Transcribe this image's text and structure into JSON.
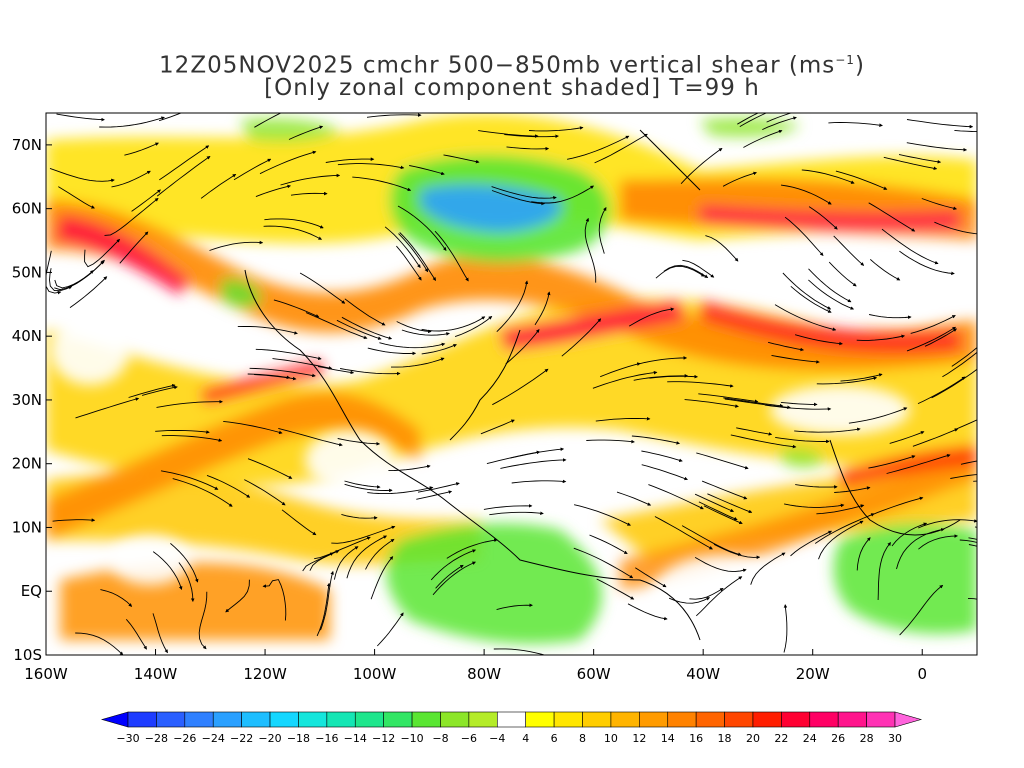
{
  "title": {
    "line1_prefix": "12Z05NOV2025 cmchr 500−850mb vertical shear (ms",
    "line1_sup": "−1",
    "line1_suffix": ")",
    "line2": "[Only zonal component shaded] T=99 h"
  },
  "map": {
    "lon_range": [
      -160,
      10
    ],
    "lat_range": [
      -10,
      75
    ],
    "lat_ticks": [
      {
        "value": 70,
        "label": "70N"
      },
      {
        "value": 60,
        "label": "60N"
      },
      {
        "value": 50,
        "label": "50N"
      },
      {
        "value": 40,
        "label": "40N"
      },
      {
        "value": 30,
        "label": "30N"
      },
      {
        "value": 20,
        "label": "20N"
      },
      {
        "value": 10,
        "label": "10N"
      },
      {
        "value": 0,
        "label": "EQ"
      },
      {
        "value": -10,
        "label": "10S"
      }
    ],
    "lon_ticks": [
      {
        "value": -160,
        "label": "160W"
      },
      {
        "value": -140,
        "label": "140W"
      },
      {
        "value": -120,
        "label": "120W"
      },
      {
        "value": -100,
        "label": "100W"
      },
      {
        "value": -80,
        "label": "80W"
      },
      {
        "value": -60,
        "label": "60W"
      },
      {
        "value": -40,
        "label": "40W"
      },
      {
        "value": -20,
        "label": "20W"
      },
      {
        "value": 0,
        "label": "0"
      }
    ]
  },
  "colorbar": {
    "labels": [
      "−30",
      "−28",
      "−26",
      "−24",
      "−22",
      "−20",
      "−18",
      "−16",
      "−14",
      "−12",
      "−10",
      "−8",
      "−6",
      "−4",
      "4",
      "6",
      "8",
      "10",
      "12",
      "14",
      "16",
      "18",
      "20",
      "22",
      "24",
      "26",
      "28",
      "30"
    ],
    "colors": [
      "#1e3cff",
      "#2a5fff",
      "#2f80ff",
      "#2aa0ff",
      "#1ebeff",
      "#14d7ff",
      "#14e6dc",
      "#14e6b4",
      "#1ee68c",
      "#32e664",
      "#5ae632",
      "#8ce628",
      "#b4ec28",
      "#ffffff",
      "#ffff00",
      "#ffe600",
      "#ffcd00",
      "#ffb400",
      "#ff9b00",
      "#ff8200",
      "#ff6400",
      "#ff4600",
      "#ff1e00",
      "#ff0032",
      "#ff0064",
      "#ff148c",
      "#ff32b4"
    ],
    "low_color": "#0000ff",
    "high_color": "#ff64dc"
  }
}
